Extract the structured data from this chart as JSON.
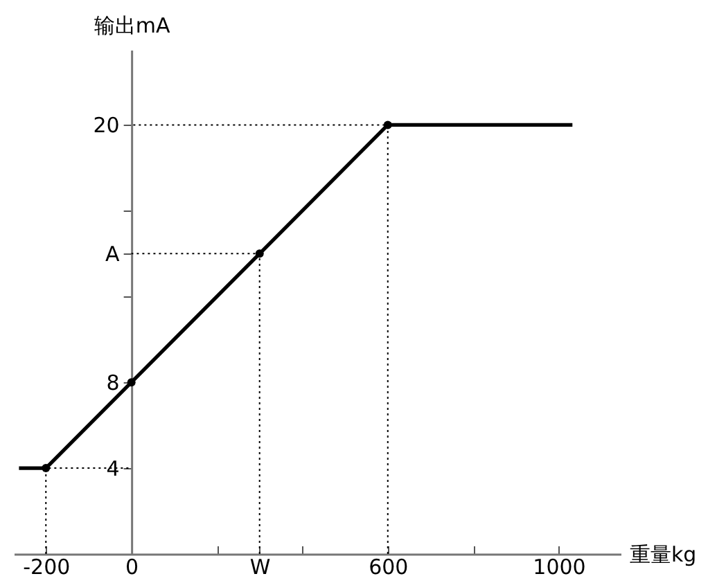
{
  "chart_data": {
    "type": "line",
    "xlabel": "重量kg",
    "ylabel": "输出mA",
    "xlim": [
      -275,
      1145
    ],
    "ylim": [
      0,
      23.5
    ],
    "xticks": [
      {
        "value": -200,
        "label": "-200"
      },
      0,
      {
        "value": 200,
        "label": null
      },
      {
        "value": 300,
        "label": "W"
      },
      {
        "value": 400,
        "label": null
      },
      600,
      {
        "value": 800,
        "label": null
      },
      1000
    ],
    "yticks": [
      4,
      8,
      {
        "value": 12,
        "label": null
      },
      {
        "value": 14,
        "label": "A"
      },
      {
        "value": 16,
        "label": null
      },
      20
    ],
    "grid": false,
    "series": [
      {
        "type": "line",
        "color": "#000000",
        "marker": "none",
        "line_style": "solid",
        "x": [
          -263,
          -200,
          0,
          300,
          600,
          1032
        ],
        "values": [
          4,
          4,
          8,
          14,
          20,
          20
        ]
      },
      {
        "type": "scatter",
        "color": "#000000",
        "marker": "circle",
        "x": [
          -200,
          0,
          300,
          600
        ],
        "values": [
          4,
          8,
          14,
          20
        ]
      },
      {
        "type": "line",
        "color": "#000000",
        "marker": "none",
        "line_style": "dotted",
        "x": [
          -200,
          -200,
          0
        ],
        "values": [
          0,
          4,
          4
        ]
      },
      {
        "type": "line",
        "color": "#000000",
        "marker": "none",
        "line_style": "dotted",
        "x": [
          300,
          300,
          0
        ],
        "values": [
          0,
          14,
          14
        ]
      },
      {
        "type": "line",
        "color": "#000000",
        "marker": "none",
        "line_style": "dotted",
        "x": [
          600,
          600,
          0
        ],
        "values": [
          0,
          20,
          20
        ]
      }
    ]
  }
}
